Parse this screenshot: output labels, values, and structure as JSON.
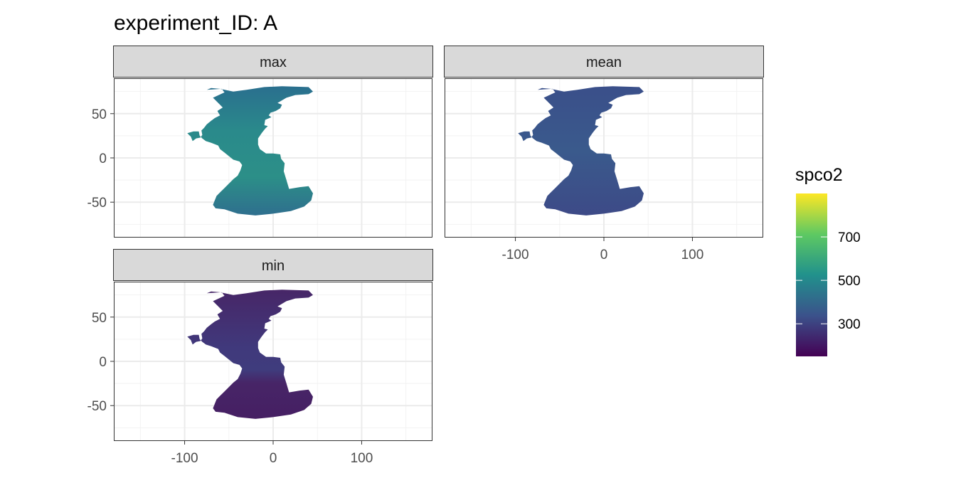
{
  "chart_data": {
    "type": "heatmap",
    "title": "experiment_ID: A",
    "facets": [
      "max",
      "mean",
      "min"
    ],
    "x_ticks": [
      -100,
      0,
      100
    ],
    "y_ticks": [
      50,
      0,
      -50
    ],
    "xlim": [
      -180,
      180
    ],
    "ylim": [
      -90,
      90
    ],
    "grid": true,
    "legend": {
      "title": "spco2",
      "position": "right",
      "colormap": "viridis",
      "range": [
        150,
        900
      ],
      "ticks": [
        700,
        500,
        300
      ],
      "colors": [
        "#440154",
        "#3b528b",
        "#21918c",
        "#5ec962",
        "#fde725"
      ]
    },
    "facet_fill": {
      "max": "#2f7c8c",
      "mean": "#3b538b",
      "min": "#452d76"
    },
    "region": "Atlantic Ocean"
  }
}
